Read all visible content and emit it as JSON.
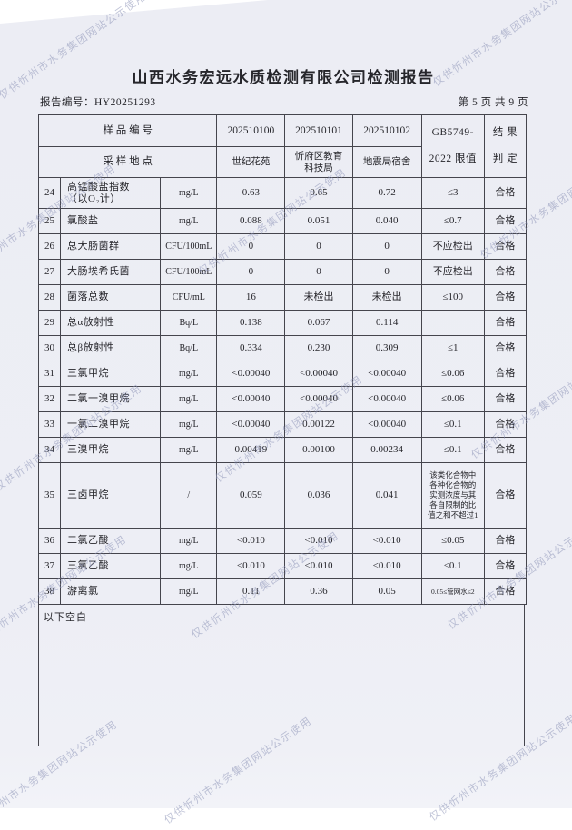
{
  "watermark": {
    "text": "仅供忻州市水务集团网站公示使用"
  },
  "header": {
    "title": "山西水务宏远水质检测有限公司检测报告",
    "report_no_label": "报告编号：",
    "report_no_value": "HY20251293",
    "page_indicator": "第 5 页 共 9 页"
  },
  "table": {
    "sample_row_label": "样 品 编 号",
    "location_row_label": "采 样 地 点",
    "sample_ids": [
      "202510100",
      "202510101",
      "202510102"
    ],
    "locations": [
      "世纪花苑",
      "忻府区教育\n科技局",
      "地震局宿舍"
    ],
    "limit_header": "GB5749-\n2022 限值",
    "result_header": "结 果\n判 定",
    "rows": [
      {
        "no": "24",
        "param": "高锰酸盐指数\n（以O₂计）",
        "unit": "mg/L",
        "values": [
          "0.63",
          "0.65",
          "0.72"
        ],
        "limit": "≤3",
        "result": "合格"
      },
      {
        "no": "25",
        "param": "氯酸盐",
        "unit": "mg/L",
        "values": [
          "0.088",
          "0.051",
          "0.040"
        ],
        "limit": "≤0.7",
        "result": "合格"
      },
      {
        "no": "26",
        "param": "总大肠菌群",
        "unit": "CFU/100mL",
        "values": [
          "0",
          "0",
          "0"
        ],
        "limit": "不应检出",
        "result": "合格"
      },
      {
        "no": "27",
        "param": "大肠埃希氏菌",
        "unit": "CFU/100mL",
        "values": [
          "0",
          "0",
          "0"
        ],
        "limit": "不应检出",
        "result": "合格"
      },
      {
        "no": "28",
        "param": "菌落总数",
        "unit": "CFU/mL",
        "values": [
          "16",
          "未检出",
          "未检出"
        ],
        "limit": "≤100",
        "result": "合格"
      },
      {
        "no": "29",
        "param": "总α放射性",
        "unit": "Bq/L",
        "values": [
          "0.138",
          "0.067",
          "0.114"
        ],
        "limit": "",
        "result": "合格"
      },
      {
        "no": "30",
        "param": "总β放射性",
        "unit": "Bq/L",
        "values": [
          "0.334",
          "0.230",
          "0.309"
        ],
        "limit": "≤1",
        "result": "合格"
      },
      {
        "no": "31",
        "param": "三氯甲烷",
        "unit": "mg/L",
        "values": [
          "<0.00040",
          "<0.00040",
          "<0.00040"
        ],
        "limit": "≤0.06",
        "result": "合格"
      },
      {
        "no": "32",
        "param": "二氯一溴甲烷",
        "unit": "mg/L",
        "values": [
          "<0.00040",
          "<0.00040",
          "<0.00040"
        ],
        "limit": "≤0.06",
        "result": "合格"
      },
      {
        "no": "33",
        "param": "一氯二溴甲烷",
        "unit": "mg/L",
        "values": [
          "<0.00040",
          "0.00122",
          "<0.00040"
        ],
        "limit": "≤0.1",
        "result": "合格"
      },
      {
        "no": "34",
        "param": "三溴甲烷",
        "unit": "mg/L",
        "values": [
          "0.00419",
          "0.00100",
          "0.00234"
        ],
        "limit": "≤0.1",
        "result": "合格"
      },
      {
        "no": "35",
        "param": "三卤甲烷",
        "unit": "/",
        "values": [
          "0.059",
          "0.036",
          "0.041"
        ],
        "limit": "该类化合物中各种化合物的实测浓度与其各自限制的比值之和不超过1",
        "result": "合格"
      },
      {
        "no": "36",
        "param": "二氯乙酸",
        "unit": "mg/L",
        "values": [
          "<0.010",
          "<0.010",
          "<0.010"
        ],
        "limit": "≤0.05",
        "result": "合格"
      },
      {
        "no": "37",
        "param": "三氯乙酸",
        "unit": "mg/L",
        "values": [
          "<0.010",
          "<0.010",
          "<0.010"
        ],
        "limit": "≤0.1",
        "result": "合格"
      },
      {
        "no": "38",
        "param": "游离氯",
        "unit": "mg/L",
        "values": [
          "0.11",
          "0.36",
          "0.05"
        ],
        "limit": "0.05≤管网水≤2",
        "result": "合格"
      }
    ]
  },
  "footer_note": "以下空白"
}
